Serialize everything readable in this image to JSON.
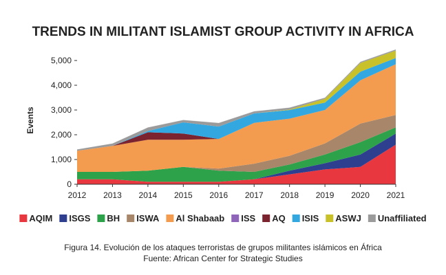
{
  "chart_data": {
    "type": "area",
    "stacked": true,
    "title": "TRENDS IN MILITANT ISLAMIST GROUP ACTIVITY IN AFRICA",
    "xlabel": "",
    "ylabel": "Events",
    "x": [
      "2012",
      "2013",
      "2014",
      "2015",
      "2016",
      "2017",
      "2018",
      "2019",
      "2020",
      "2021"
    ],
    "ylim": [
      0,
      5500
    ],
    "yticks": [
      0,
      1000,
      2000,
      3000,
      4000,
      5000
    ],
    "ytick_labels": [
      "0",
      "1,000",
      "2,000",
      "3,000",
      "4,000",
      "5,000"
    ],
    "grid": false,
    "legend_position": "bottom",
    "series": [
      {
        "name": "AQIM",
        "color": "#e8373f",
        "values": [
          200,
          200,
          100,
          100,
          100,
          200,
          400,
          600,
          700,
          1600
        ]
      },
      {
        "name": "ISGS",
        "color": "#2e3f8f",
        "values": [
          0,
          0,
          0,
          0,
          0,
          0,
          150,
          250,
          500,
          450
        ]
      },
      {
        "name": "BH",
        "color": "#2ea24a",
        "values": [
          300,
          300,
          450,
          600,
          450,
          300,
          250,
          350,
          500,
          250
        ]
      },
      {
        "name": "ISWA",
        "color": "#a8866a",
        "values": [
          0,
          0,
          0,
          0,
          80,
          330,
          350,
          450,
          750,
          500
        ]
      },
      {
        "name": "Al Shabaab",
        "color": "#f39c4f",
        "values": [
          850,
          1050,
          1250,
          1100,
          1200,
          1650,
          1500,
          1350,
          1750,
          2050
        ]
      },
      {
        "name": "ISS",
        "color": "#8e65b8",
        "values": [
          0,
          0,
          0,
          0,
          0,
          0,
          0,
          0,
          0,
          0
        ]
      },
      {
        "name": "AQ",
        "color": "#7b2430",
        "values": [
          0,
          0,
          300,
          250,
          0,
          0,
          0,
          0,
          0,
          0
        ]
      },
      {
        "name": "ISIS",
        "color": "#33a8e0",
        "values": [
          0,
          0,
          50,
          450,
          500,
          380,
          350,
          300,
          350,
          250
        ]
      },
      {
        "name": "ASWJ",
        "color": "#c9c12a",
        "values": [
          0,
          0,
          0,
          0,
          0,
          0,
          20,
          150,
          350,
          300
        ]
      },
      {
        "name": "Unaffiliated",
        "color": "#9b9b9b",
        "values": [
          60,
          100,
          150,
          100,
          150,
          90,
          80,
          50,
          50,
          50
        ]
      }
    ]
  },
  "caption": {
    "line1": "Figura 14. Evolución de los ataques terroristas de grupos militantes islámicos en África",
    "line2": "Fuente: African Center for Strategic Studies"
  }
}
